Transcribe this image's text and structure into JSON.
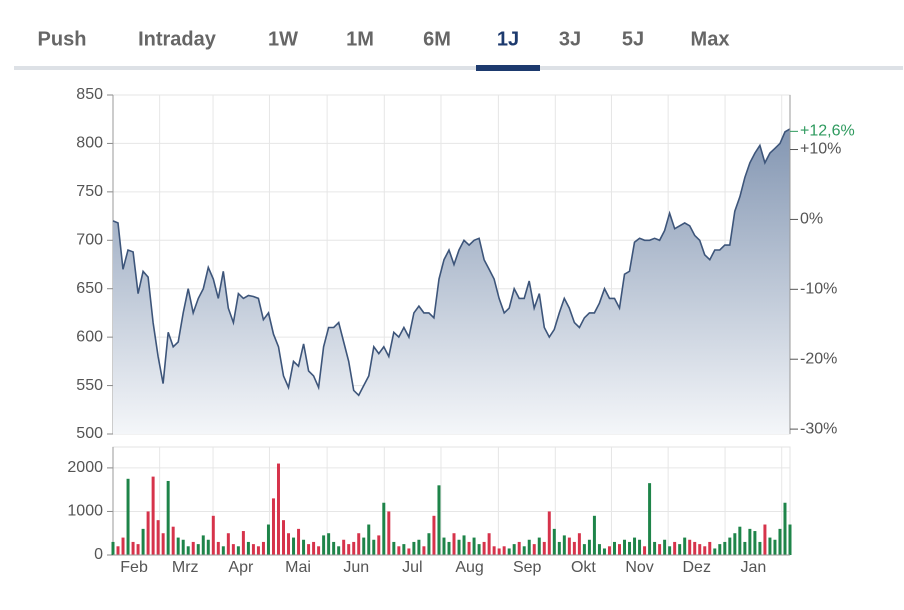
{
  "tabs": {
    "items": [
      "Push",
      "Intraday",
      "1W",
      "1M",
      "6M",
      "1J",
      "3J",
      "5J",
      "Max"
    ],
    "active": 5
  },
  "chart_data": [
    {
      "type": "line",
      "color": "#3d557a",
      "grid": true,
      "xlim": [
        0,
        135
      ],
      "ylim": [
        500,
        850
      ],
      "yticks": [
        500,
        550,
        600,
        650,
        700,
        750,
        800,
        850
      ],
      "y2lim": [
        -30.7,
        17.8
      ],
      "y2ticks": [
        {
          "value": -30,
          "label": "-30%"
        },
        {
          "value": -20,
          "label": "-20%"
        },
        {
          "value": -10,
          "label": "-10%"
        },
        {
          "value": 0,
          "label": "0%"
        },
        {
          "value": 10,
          "label": "+10%"
        }
      ],
      "y2_marker": {
        "value": 12.6,
        "label": "+12,6%",
        "color": "#2e9a5e"
      },
      "values": [
        720,
        718,
        670,
        690,
        688,
        645,
        668,
        662,
        615,
        580,
        552,
        605,
        590,
        595,
        625,
        650,
        625,
        640,
        650,
        672,
        660,
        640,
        668,
        630,
        615,
        645,
        640,
        643,
        642,
        640,
        618,
        625,
        603,
        590,
        560,
        548,
        575,
        570,
        593,
        565,
        560,
        548,
        590,
        610,
        610,
        615,
        595,
        575,
        545,
        540,
        550,
        560,
        590,
        583,
        590,
        580,
        605,
        600,
        610,
        600,
        625,
        632,
        625,
        625,
        620,
        660,
        680,
        690,
        675,
        690,
        700,
        695,
        700,
        702,
        680,
        670,
        660,
        640,
        625,
        630,
        650,
        640,
        640,
        658,
        630,
        645,
        610,
        600,
        608,
        625,
        640,
        630,
        615,
        610,
        620,
        625,
        625,
        635,
        650,
        640,
        640,
        630,
        665,
        668,
        698,
        702,
        700,
        700,
        702,
        700,
        710,
        728,
        712,
        715,
        718,
        715,
        705,
        700,
        685,
        680,
        690,
        690,
        695,
        695,
        730,
        745,
        765,
        780,
        790,
        798,
        780,
        790,
        795,
        800,
        812,
        815
      ]
    },
    {
      "type": "bar",
      "up_color": "#1e8449",
      "down_color": "#d6334b",
      "grid": true,
      "xlim": [
        0,
        135
      ],
      "ylim": [
        0,
        2480
      ],
      "yticks": [
        0,
        1000,
        2000
      ],
      "xticks": [
        {
          "value": 4.2,
          "label": "Feb"
        },
        {
          "value": 14.4,
          "label": "Mrz"
        },
        {
          "value": 25.5,
          "label": "Apr"
        },
        {
          "value": 36.9,
          "label": "Mai"
        },
        {
          "value": 48.5,
          "label": "Jun"
        },
        {
          "value": 59.7,
          "label": "Jul"
        },
        {
          "value": 71.1,
          "label": "Aug"
        },
        {
          "value": 82.6,
          "label": "Sep"
        },
        {
          "value": 93.8,
          "label": "Okt"
        },
        {
          "value": 105,
          "label": "Nov"
        },
        {
          "value": 116.4,
          "label": "Dez"
        },
        {
          "value": 127.7,
          "label": "Jan"
        }
      ],
      "values": [
        300,
        200,
        400,
        1750,
        300,
        250,
        600,
        1000,
        1800,
        800,
        500,
        1700,
        650,
        400,
        350,
        200,
        300,
        250,
        450,
        350,
        900,
        300,
        200,
        500,
        250,
        200,
        550,
        300,
        250,
        200,
        300,
        700,
        1300,
        2100,
        800,
        500,
        400,
        600,
        350,
        250,
        300,
        200,
        450,
        500,
        300,
        200,
        350,
        250,
        300,
        500,
        400,
        700,
        350,
        450,
        1200,
        1000,
        300,
        200,
        250,
        150,
        300,
        350,
        200,
        500,
        900,
        1600,
        400,
        300,
        500,
        350,
        450,
        300,
        400,
        250,
        300,
        500,
        200,
        150,
        200,
        150,
        250,
        300,
        200,
        350,
        250,
        400,
        300,
        1000,
        600,
        300,
        450,
        400,
        300,
        500,
        250,
        350,
        900,
        250,
        150,
        200,
        300,
        250,
        350,
        300,
        400,
        350,
        200,
        1650,
        300,
        250,
        350,
        200,
        300,
        250,
        400,
        350,
        300,
        250,
        200,
        300,
        150,
        250,
        300,
        400,
        500,
        650,
        300,
        600,
        550,
        300,
        700,
        400,
        350,
        600,
        1200,
        700
      ]
    }
  ]
}
